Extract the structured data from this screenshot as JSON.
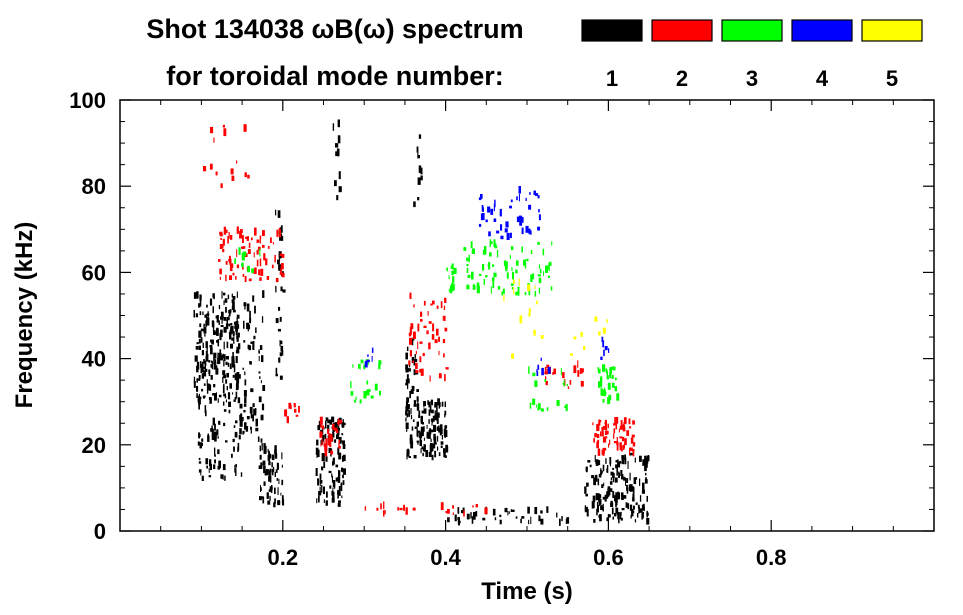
{
  "chart_data": {
    "type": "scatter",
    "title_line1": "Shot 134038 ωB(ω) spectrum",
    "title_line2": "for toroidal mode number:",
    "xlabel": "Time (s)",
    "ylabel": "Frequency (kHz)",
    "xlim": [
      0.0,
      1.0
    ],
    "ylim": [
      0,
      100
    ],
    "x_ticks": [
      {
        "value": 0.2,
        "label": "0.2"
      },
      {
        "value": 0.4,
        "label": "0.4"
      },
      {
        "value": 0.6,
        "label": "0.6"
      },
      {
        "value": 0.8,
        "label": "0.8"
      }
    ],
    "y_ticks": [
      {
        "value": 0,
        "label": "0"
      },
      {
        "value": 20,
        "label": "20"
      },
      {
        "value": 40,
        "label": "40"
      },
      {
        "value": 60,
        "label": "60"
      },
      {
        "value": 80,
        "label": "80"
      },
      {
        "value": 100,
        "label": "100"
      }
    ],
    "legend": [
      {
        "label": "1",
        "color": "#000000"
      },
      {
        "label": "2",
        "color": "#ff0000"
      },
      {
        "label": "3",
        "color": "#00ff00"
      },
      {
        "label": "4",
        "color": "#0000ff"
      },
      {
        "label": "5",
        "color": "#ffff00"
      }
    ],
    "series": [
      {
        "name": "n=1",
        "color": "#000000",
        "regions": [
          {
            "t": [
              0.09,
              0.145
            ],
            "f": [
              30,
              55
            ],
            "n": 220
          },
          {
            "t": [
              0.095,
              0.15
            ],
            "f": [
              12,
              30
            ],
            "n": 70
          },
          {
            "t": [
              0.15,
              0.175
            ],
            "f": [
              20,
              55
            ],
            "n": 60
          },
          {
            "t": [
              0.17,
              0.2
            ],
            "f": [
              6,
              20
            ],
            "n": 60
          },
          {
            "t": [
              0.19,
              0.2
            ],
            "f": [
              35,
              75
            ],
            "n": 30
          },
          {
            "t": [
              0.24,
              0.275
            ],
            "f": [
              6,
              26
            ],
            "n": 110
          },
          {
            "t": [
              0.35,
              0.4
            ],
            "f": [
              17,
              30
            ],
            "n": 130
          },
          {
            "t": [
              0.35,
              0.365
            ],
            "f": [
              30,
              45
            ],
            "n": 30
          },
          {
            "t": [
              0.4,
              0.55
            ],
            "f": [
              2,
              5
            ],
            "n": 40
          },
          {
            "t": [
              0.57,
              0.65
            ],
            "f": [
              2,
              18
            ],
            "n": 170
          },
          {
            "t": [
              0.26,
              0.27
            ],
            "f": [
              75,
              95
            ],
            "n": 10
          },
          {
            "t": [
              0.36,
              0.37
            ],
            "f": [
              75,
              92
            ],
            "n": 10
          }
        ]
      },
      {
        "name": "n=2",
        "color": "#ff0000",
        "regions": [
          {
            "t": [
              0.12,
              0.2
            ],
            "f": [
              58,
              70
            ],
            "n": 80
          },
          {
            "t": [
              0.1,
              0.16
            ],
            "f": [
              78,
              95
            ],
            "n": 14
          },
          {
            "t": [
              0.245,
              0.27
            ],
            "f": [
              18,
              26
            ],
            "n": 30
          },
          {
            "t": [
              0.35,
              0.4
            ],
            "f": [
              35,
              55
            ],
            "n": 50
          },
          {
            "t": [
              0.58,
              0.63
            ],
            "f": [
              18,
              26
            ],
            "n": 70
          },
          {
            "t": [
              0.52,
              0.57
            ],
            "f": [
              33,
              40
            ],
            "n": 20
          },
          {
            "t": [
              0.2,
              0.22
            ],
            "f": [
              25,
              30
            ],
            "n": 8
          },
          {
            "t": [
              0.3,
              0.45
            ],
            "f": [
              4,
              6
            ],
            "n": 20
          }
        ]
      },
      {
        "name": "n=3",
        "color": "#00ff00",
        "regions": [
          {
            "t": [
              0.42,
              0.53
            ],
            "f": [
              55,
              67
            ],
            "n": 80
          },
          {
            "t": [
              0.28,
              0.32
            ],
            "f": [
              30,
              40
            ],
            "n": 22
          },
          {
            "t": [
              0.4,
              0.41
            ],
            "f": [
              55,
              62
            ],
            "n": 12
          },
          {
            "t": [
              0.585,
              0.61
            ],
            "f": [
              30,
              38
            ],
            "n": 35
          },
          {
            "t": [
              0.5,
              0.55
            ],
            "f": [
              28,
              38
            ],
            "n": 18
          },
          {
            "t": [
              0.14,
              0.18
            ],
            "f": [
              60,
              65
            ],
            "n": 10
          }
        ]
      },
      {
        "name": "n=4",
        "color": "#0000ff",
        "regions": [
          {
            "t": [
              0.44,
              0.515
            ],
            "f": [
              68,
              80
            ],
            "n": 45
          },
          {
            "t": [
              0.3,
              0.31
            ],
            "f": [
              38,
              42
            ],
            "n": 6
          },
          {
            "t": [
              0.51,
              0.53
            ],
            "f": [
              36,
              40
            ],
            "n": 6
          },
          {
            "t": [
              0.59,
              0.6
            ],
            "f": [
              40,
              45
            ],
            "n": 6
          }
        ]
      },
      {
        "name": "n=5",
        "color": "#ffff00",
        "regions": [
          {
            "t": [
              0.47,
              0.52
            ],
            "f": [
              40,
              60
            ],
            "n": 14
          },
          {
            "t": [
              0.55,
              0.6
            ],
            "f": [
              40,
              50
            ],
            "n": 8
          }
        ]
      }
    ]
  }
}
